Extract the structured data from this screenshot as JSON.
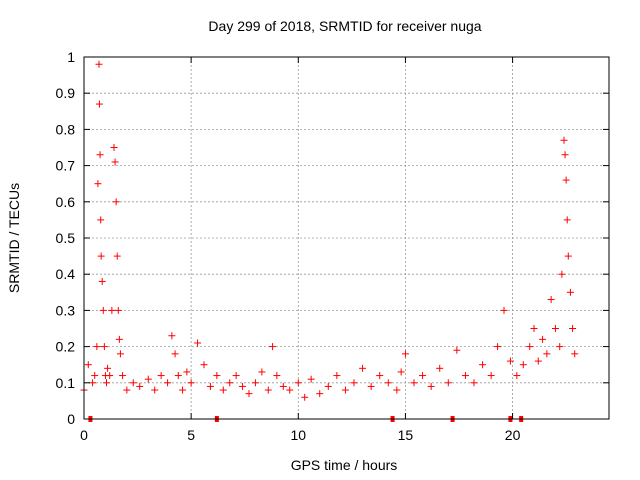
{
  "chart_data": {
    "type": "scatter",
    "title": "Day 299 of 2018, SRMTID for receiver nuga",
    "xlabel": "GPS time / hours",
    "ylabel": "SRMTID / TECUs",
    "xlim": [
      0,
      24.5
    ],
    "ylim": [
      0,
      1
    ],
    "xticks": [
      0,
      5,
      10,
      15,
      20
    ],
    "xtick_labels": [
      "0",
      "5",
      "10",
      "15",
      "20"
    ],
    "yticks": [
      0,
      0.1,
      0.2,
      0.3,
      0.4,
      0.5,
      0.6,
      0.7,
      0.8,
      0.9,
      1
    ],
    "ytick_labels": [
      "0",
      "0.1",
      "0.2",
      "0.3",
      "0.4",
      "0.5",
      "0.6",
      "0.7",
      "0.8",
      "0.9",
      "1"
    ],
    "grid": true,
    "marker": "+",
    "color": "#ff0000",
    "series": [
      {
        "name": "SRMTID",
        "x": [
          0.0,
          0.2,
          0.4,
          0.5,
          0.6,
          0.65,
          0.7,
          0.72,
          0.75,
          0.78,
          0.8,
          0.85,
          0.9,
          0.95,
          1.0,
          1.05,
          1.1,
          1.2,
          1.3,
          1.4,
          1.45,
          1.5,
          1.55,
          1.6,
          1.65,
          1.7,
          1.8,
          2.0,
          2.3,
          2.6,
          3.0,
          3.3,
          3.6,
          3.9,
          4.1,
          4.25,
          4.4,
          4.6,
          4.8,
          5.0,
          5.3,
          5.6,
          5.9,
          6.2,
          6.5,
          6.8,
          7.1,
          7.4,
          7.7,
          8.0,
          8.3,
          8.6,
          8.8,
          9.0,
          9.3,
          9.6,
          10.0,
          10.3,
          10.6,
          11.0,
          11.4,
          11.8,
          12.2,
          12.6,
          13.0,
          13.4,
          13.8,
          14.2,
          14.6,
          14.8,
          15.0,
          15.4,
          15.8,
          16.2,
          16.6,
          17.0,
          17.4,
          17.8,
          18.2,
          18.6,
          19.0,
          19.3,
          19.6,
          19.9,
          20.2,
          20.5,
          20.8,
          21.0,
          21.2,
          21.4,
          21.6,
          21.8,
          22.0,
          22.2,
          22.3,
          22.4,
          22.45,
          22.5,
          22.55,
          22.6,
          22.7,
          22.8,
          22.9
        ],
        "y": [
          0.08,
          0.15,
          0.1,
          0.12,
          0.2,
          0.65,
          0.98,
          0.87,
          0.73,
          0.55,
          0.45,
          0.38,
          0.3,
          0.2,
          0.12,
          0.1,
          0.14,
          0.12,
          0.3,
          0.75,
          0.71,
          0.6,
          0.45,
          0.3,
          0.22,
          0.18,
          0.12,
          0.08,
          0.1,
          0.09,
          0.11,
          0.08,
          0.12,
          0.1,
          0.23,
          0.18,
          0.12,
          0.08,
          0.13,
          0.1,
          0.21,
          0.15,
          0.09,
          0.12,
          0.08,
          0.1,
          0.12,
          0.09,
          0.07,
          0.1,
          0.13,
          0.08,
          0.2,
          0.12,
          0.09,
          0.08,
          0.1,
          0.06,
          0.11,
          0.07,
          0.09,
          0.12,
          0.08,
          0.1,
          0.14,
          0.09,
          0.12,
          0.1,
          0.08,
          0.13,
          0.18,
          0.1,
          0.12,
          0.09,
          0.14,
          0.1,
          0.19,
          0.12,
          0.1,
          0.15,
          0.12,
          0.2,
          0.3,
          0.16,
          0.12,
          0.15,
          0.2,
          0.25,
          0.16,
          0.22,
          0.18,
          0.33,
          0.25,
          0.2,
          0.4,
          0.77,
          0.73,
          0.66,
          0.55,
          0.45,
          0.35,
          0.25,
          0.18
        ]
      }
    ],
    "zero_markers_x": [
      0.3,
      6.2,
      14.4,
      17.2,
      19.9,
      20.4
    ]
  }
}
